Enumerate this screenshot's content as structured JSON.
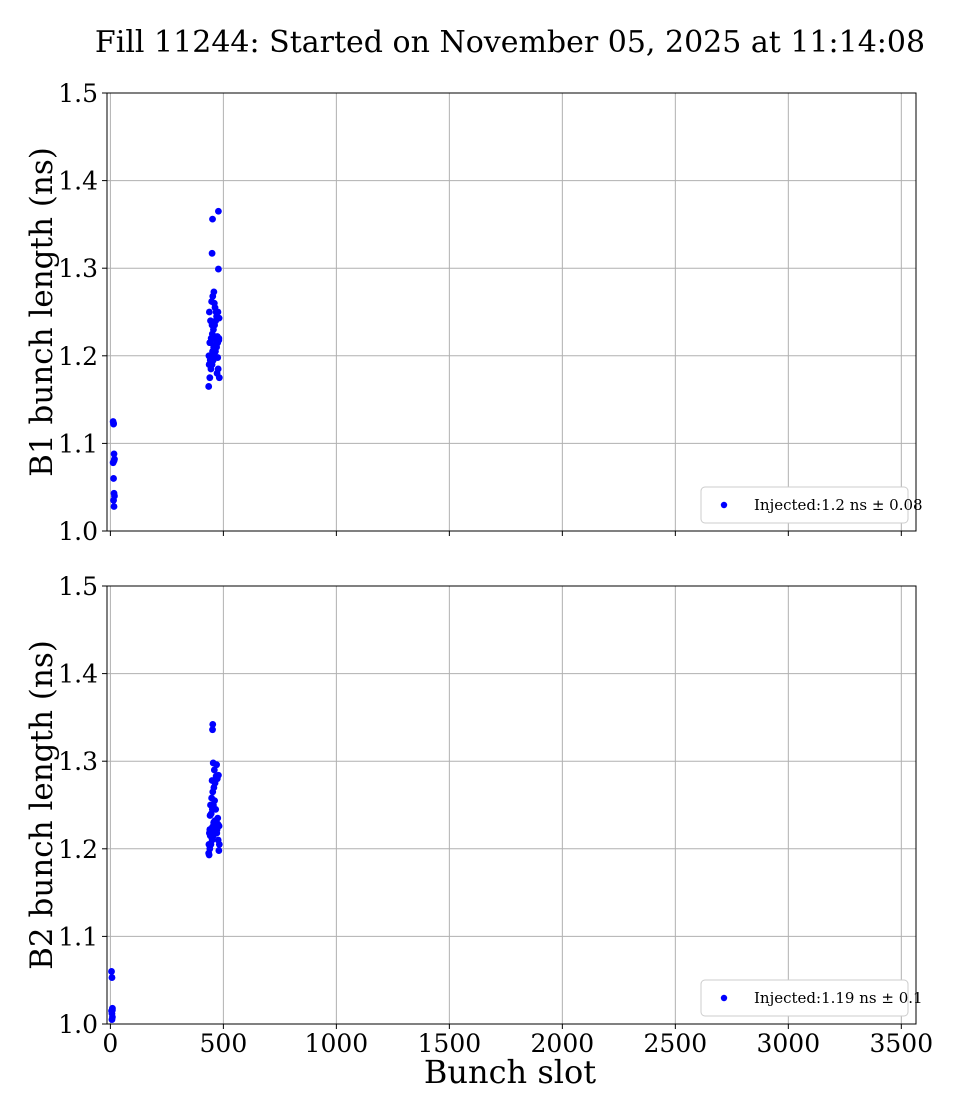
{
  "title": "Fill 11244: Started on November 05, 2025 at 11:14:08",
  "xlabel": "Bunch slot",
  "colors": {
    "marker": "#0000ff",
    "grid": "#b0b0b0",
    "axes": "#000000"
  },
  "chart_data": [
    {
      "type": "scatter",
      "ylabel": "B1 bunch length (ns)",
      "xlim": [
        -15,
        3565
      ],
      "ylim": [
        1.0,
        1.5
      ],
      "xticks": [
        0,
        500,
        1000,
        1500,
        2000,
        2500,
        3000,
        3500
      ],
      "xtick_labels_visible": false,
      "yticks": [
        "1.0",
        "1.1",
        "1.2",
        "1.3",
        "1.4",
        "1.5"
      ],
      "grid": true,
      "legend": {
        "placement": "lower-right",
        "label": "Injected:1.2 ns ± 0.08"
      },
      "series": [
        {
          "name": "Injected:1.2 ns ± 0.08",
          "x": [
            12,
            14,
            16,
            18,
            12,
            14,
            16,
            18,
            14,
            16,
            14,
            16,
            435,
            440,
            445,
            450,
            455,
            460,
            465,
            470,
            475,
            480,
            437,
            442,
            447,
            452,
            457,
            462,
            467,
            472,
            477,
            482,
            436,
            441,
            446,
            451,
            456,
            461,
            466,
            471,
            476,
            481,
            438,
            443,
            448,
            453,
            458,
            463,
            468,
            473,
            440,
            450,
            460,
            470,
            475,
            480,
            450,
            478,
            452,
            478
          ],
          "y": [
            1.125,
            1.123,
            1.088,
            1.082,
            1.078,
            1.06,
            1.043,
            1.04,
            1.035,
            1.028,
            1.122,
            1.08,
            1.165,
            1.175,
            1.185,
            1.19,
            1.195,
            1.2,
            1.205,
            1.21,
            1.215,
            1.22,
            1.19,
            1.195,
            1.2,
            1.205,
            1.21,
            1.212,
            1.218,
            1.18,
            1.185,
            1.175,
            1.2,
            1.215,
            1.22,
            1.225,
            1.23,
            1.235,
            1.24,
            1.245,
            1.25,
            1.243,
            1.25,
            1.24,
            1.262,
            1.268,
            1.273,
            1.255,
            1.25,
            1.222,
            1.215,
            1.235,
            1.26,
            1.245,
            1.198,
            1.218,
            1.317,
            1.299,
            1.356,
            1.365
          ]
        }
      ]
    },
    {
      "type": "scatter",
      "ylabel": "B2 bunch length (ns)",
      "xlim": [
        -15,
        3565
      ],
      "ylim": [
        1.0,
        1.5
      ],
      "xticks": [
        0,
        500,
        1000,
        1500,
        2000,
        2500,
        3000,
        3500
      ],
      "xtick_labels": [
        "0",
        "500",
        "1000",
        "1500",
        "2000",
        "2500",
        "3000",
        "3500"
      ],
      "xtick_labels_visible": true,
      "yticks": [
        "1.0",
        "1.1",
        "1.2",
        "1.3",
        "1.4",
        "1.5"
      ],
      "grid": true,
      "legend": {
        "placement": "lower-right",
        "label": "Injected:1.19 ns ± 0.1"
      },
      "series": [
        {
          "name": "Injected:1.19 ns ± 0.1",
          "x": [
            5,
            7,
            9,
            5,
            7,
            9,
            7,
            9,
            435,
            440,
            445,
            450,
            455,
            460,
            465,
            470,
            475,
            480,
            437,
            442,
            447,
            452,
            457,
            462,
            467,
            472,
            477,
            482,
            436,
            441,
            446,
            451,
            456,
            461,
            466,
            471,
            476,
            481,
            438,
            443,
            448,
            453,
            458,
            463,
            468,
            473,
            440,
            450,
            460,
            470,
            455,
            478,
            452,
            453
          ],
          "y": [
            1.06,
            1.053,
            1.018,
            1.015,
            1.012,
            1.008,
            1.005,
            1.016,
            1.195,
            1.2,
            1.205,
            1.21,
            1.215,
            1.22,
            1.225,
            1.23,
            1.235,
            1.198,
            1.193,
            1.215,
            1.22,
            1.225,
            1.23,
            1.232,
            1.228,
            1.222,
            1.21,
            1.205,
            1.205,
            1.238,
            1.24,
            1.245,
            1.25,
            1.255,
            1.245,
            1.218,
            1.228,
            1.226,
            1.218,
            1.25,
            1.258,
            1.265,
            1.27,
            1.275,
            1.283,
            1.28,
            1.222,
            1.278,
            1.29,
            1.296,
            1.298,
            1.284,
            1.336,
            1.342
          ]
        }
      ]
    }
  ]
}
